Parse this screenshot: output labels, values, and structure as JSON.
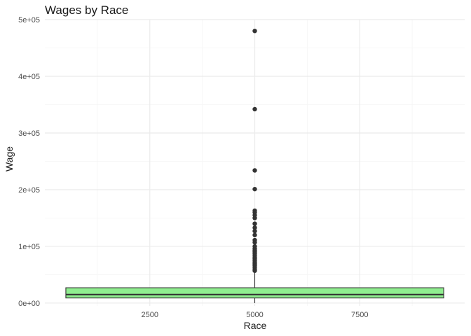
{
  "chart_data": {
    "type": "boxplot",
    "title": "Wages by Race",
    "xlabel": "Race",
    "ylabel": "Wage",
    "xlim": [
      0,
      10000
    ],
    "ylim": [
      -5000,
      500000
    ],
    "x_ticks": [
      2500,
      5000,
      7500
    ],
    "x_tick_labels": [
      "2500",
      "5000",
      "7500"
    ],
    "y_ticks": [
      0,
      100000,
      200000,
      300000,
      400000,
      500000
    ],
    "y_tick_labels": [
      "0e+00",
      "1e+05",
      "2e+05",
      "3e+05",
      "4e+05",
      "5e+05"
    ],
    "grid": true,
    "box": {
      "x_center": 5000,
      "x_range": [
        500,
        9500
      ],
      "lower_whisker": 0,
      "q1": 9000,
      "median": 15000,
      "q3": 27000,
      "upper_whisker": 55000,
      "fill_color": "#90ee90",
      "outliers": [
        480000,
        342000,
        234000,
        201000,
        163000,
        160000,
        155000,
        150000,
        140000,
        133000,
        127000,
        120000,
        111000,
        107000,
        100000,
        96000,
        93000,
        90000,
        87000,
        84000,
        81000,
        78000,
        75000,
        72000,
        69000,
        66000,
        63000,
        60000,
        57000
      ]
    },
    "colors": {
      "grid_major": "#ebebeb",
      "grid_minor": "#f5f5f5",
      "box_stroke": "#333333",
      "outlier": "#333333"
    }
  }
}
